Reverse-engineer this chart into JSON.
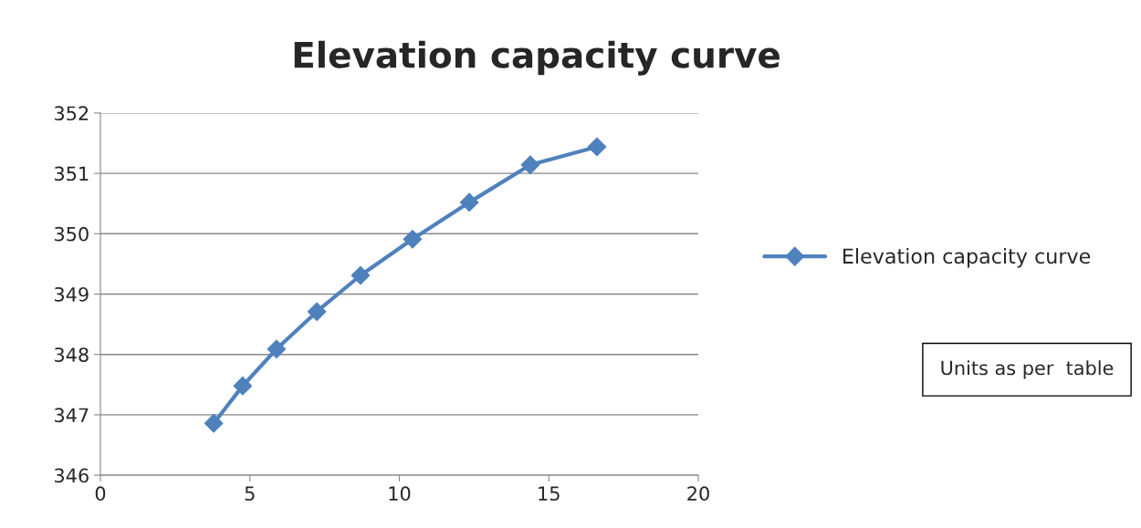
{
  "chart_data": {
    "type": "line",
    "title": "Elevation capacity curve",
    "x": [
      3.79,
      4.76,
      5.89,
      7.24,
      8.7,
      10.44,
      12.34,
      14.38,
      16.61
    ],
    "series": [
      {
        "name": "Elevation capacity curve",
        "color": "#4f81bd",
        "values": [
          346.86,
          347.48,
          348.09,
          348.71,
          349.31,
          349.91,
          350.52,
          351.14,
          351.44
        ]
      }
    ],
    "xlim": [
      0,
      20
    ],
    "xticks": [
      0,
      5,
      10,
      15,
      20
    ],
    "ylim": [
      346,
      352
    ],
    "yticks": [
      346,
      347,
      348,
      349,
      350,
      351,
      352
    ],
    "grid": "y",
    "legend": "right",
    "marker": "diamond",
    "line_style": "solid",
    "annotations": [
      "Units as per  table"
    ]
  }
}
